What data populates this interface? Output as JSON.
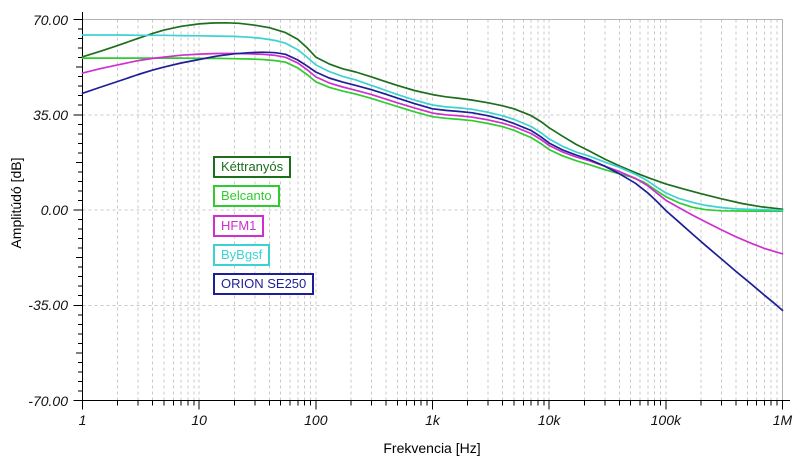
{
  "chart_data": {
    "type": "line",
    "title": "",
    "xlabel": "Frekvencia [Hz]",
    "ylabel": "Amplitúdó [dB]",
    "x_scale": "log",
    "xlim": [
      1,
      1000000
    ],
    "ylim": [
      -70,
      70
    ],
    "y_major_step": 35,
    "y_minor_step": 3.5,
    "grid": {
      "horizontal_dashed_at": [
        35,
        0,
        -35
      ],
      "vertical_dashed": "log minor 2-9 each decade plus decades",
      "top_frame": 70,
      "right_frame": 1000000
    },
    "colors": {
      "grid": "#c9c9c9",
      "frame": "#b2b2b2",
      "axis": "#000000",
      "tick_text": "#111111"
    },
    "x_ticks": [
      {
        "value": 1,
        "label": "1"
      },
      {
        "value": 10,
        "label": "10"
      },
      {
        "value": 100,
        "label": "100"
      },
      {
        "value": 1000,
        "label": "1k"
      },
      {
        "value": 10000,
        "label": "10k"
      },
      {
        "value": 100000,
        "label": "100k"
      },
      {
        "value": 1000000,
        "label": "1M"
      }
    ],
    "y_ticks": [
      {
        "value": 70,
        "label": "70.00"
      },
      {
        "value": 35,
        "label": "35.00"
      },
      {
        "value": 0,
        "label": "0.00"
      },
      {
        "value": -35,
        "label": "-35.00"
      },
      {
        "value": -70,
        "label": "-70.00"
      }
    ],
    "legend": {
      "position": "inside-left",
      "items": [
        "Kéttranyós",
        "Belcanto",
        "HFM1",
        "ByBgsf",
        "ORION SE250"
      ]
    },
    "series": [
      {
        "name": "Kéttranyós",
        "color": "#1d6e1d",
        "points": [
          [
            1,
            56.3
          ],
          [
            1.4,
            58.2
          ],
          [
            2,
            60.4
          ],
          [
            3,
            63.1
          ],
          [
            4,
            64.9
          ],
          [
            5,
            66.1
          ],
          [
            7,
            67.5
          ],
          [
            10,
            68.4
          ],
          [
            13,
            68.7
          ],
          [
            17,
            68.8
          ],
          [
            22,
            68.6
          ],
          [
            30,
            67.9
          ],
          [
            40,
            67
          ],
          [
            55,
            65.2
          ],
          [
            70,
            62.7
          ],
          [
            85,
            59.4
          ],
          [
            100,
            56.2
          ],
          [
            130,
            53.7
          ],
          [
            170,
            51.9
          ],
          [
            220,
            50.7
          ],
          [
            300,
            48.9
          ],
          [
            400,
            47.1
          ],
          [
            500,
            45.8
          ],
          [
            700,
            43.9
          ],
          [
            1000,
            42.4
          ],
          [
            1300,
            41.6
          ],
          [
            1700,
            41
          ],
          [
            2200,
            40.4
          ],
          [
            3000,
            39.4
          ],
          [
            4000,
            38.3
          ],
          [
            5000,
            37.2
          ],
          [
            7000,
            34.7
          ],
          [
            8500,
            32.5
          ],
          [
            10000,
            30.2
          ],
          [
            13000,
            27.1
          ],
          [
            17000,
            24.1
          ],
          [
            22000,
            21.7
          ],
          [
            30000,
            18.7
          ],
          [
            40000,
            16.2
          ],
          [
            55000,
            13.7
          ],
          [
            70000,
            11.9
          ],
          [
            100000,
            9.6
          ],
          [
            140000,
            7.8
          ],
          [
            200000,
            6
          ],
          [
            300000,
            4.1
          ],
          [
            450000,
            2.4
          ],
          [
            650000,
            1.2
          ],
          [
            1000000,
            0.3
          ]
        ]
      },
      {
        "name": "Belcanto",
        "color": "#2fcc2f",
        "points": [
          [
            1,
            55.8
          ],
          [
            2,
            55.8
          ],
          [
            3,
            55.8
          ],
          [
            5,
            55.8
          ],
          [
            7,
            55.8
          ],
          [
            10,
            55.7
          ],
          [
            14,
            55.7
          ],
          [
            20,
            55.6
          ],
          [
            27,
            55.5
          ],
          [
            35,
            55.3
          ],
          [
            45,
            54.9
          ],
          [
            55,
            54.3
          ],
          [
            70,
            52.2
          ],
          [
            85,
            49.6
          ],
          [
            100,
            47.1
          ],
          [
            130,
            45.1
          ],
          [
            170,
            43.7
          ],
          [
            220,
            42.6
          ],
          [
            300,
            41
          ],
          [
            400,
            39.3
          ],
          [
            500,
            38
          ],
          [
            700,
            36.1
          ],
          [
            1000,
            34.3
          ],
          [
            1300,
            33.7
          ],
          [
            1700,
            33.3
          ],
          [
            2200,
            32.8
          ],
          [
            3000,
            31.8
          ],
          [
            4000,
            30.6
          ],
          [
            5000,
            29.3
          ],
          [
            7000,
            26.6
          ],
          [
            8500,
            24.4
          ],
          [
            10000,
            22.2
          ],
          [
            13000,
            19.9
          ],
          [
            17000,
            18.1
          ],
          [
            22000,
            16.7
          ],
          [
            30000,
            14.8
          ],
          [
            40000,
            13.3
          ],
          [
            50000,
            12.2
          ],
          [
            65000,
            10.2
          ],
          [
            80000,
            7.6
          ],
          [
            100000,
            4.9
          ],
          [
            130000,
            2.6
          ],
          [
            170000,
            1
          ],
          [
            220000,
            0.1
          ],
          [
            300000,
            -0.3
          ],
          [
            500000,
            -0.4
          ],
          [
            700000,
            -0.4
          ],
          [
            1000000,
            -0.4
          ]
        ]
      },
      {
        "name": "HFM1",
        "color": "#cf2fcf",
        "points": [
          [
            1,
            50.3
          ],
          [
            1.4,
            51.9
          ],
          [
            2,
            53.3
          ],
          [
            3,
            54.9
          ],
          [
            4,
            55.7
          ],
          [
            5,
            56.2
          ],
          [
            7,
            56.9
          ],
          [
            10,
            57.3
          ],
          [
            14,
            57.5
          ],
          [
            20,
            57.5
          ],
          [
            27,
            57.4
          ],
          [
            35,
            57.2
          ],
          [
            45,
            56.8
          ],
          [
            55,
            56.1
          ],
          [
            70,
            54
          ],
          [
            85,
            51.4
          ],
          [
            100,
            48.9
          ],
          [
            130,
            46.7
          ],
          [
            170,
            45.2
          ],
          [
            220,
            44
          ],
          [
            300,
            42.4
          ],
          [
            400,
            40.7
          ],
          [
            500,
            39.4
          ],
          [
            700,
            37.5
          ],
          [
            1000,
            35.6
          ],
          [
            1300,
            35
          ],
          [
            1700,
            34.6
          ],
          [
            2200,
            34.1
          ],
          [
            3000,
            33.1
          ],
          [
            4000,
            31.9
          ],
          [
            5000,
            30.6
          ],
          [
            7000,
            28.1
          ],
          [
            8500,
            25.9
          ],
          [
            10000,
            23.7
          ],
          [
            13000,
            21.3
          ],
          [
            17000,
            19.5
          ],
          [
            22000,
            18.1
          ],
          [
            30000,
            16.1
          ],
          [
            40000,
            14.1
          ],
          [
            55000,
            11.6
          ],
          [
            70000,
            8.9
          ],
          [
            85000,
            6
          ],
          [
            100000,
            3.6
          ],
          [
            130000,
            0.8
          ],
          [
            170000,
            -1.9
          ],
          [
            220000,
            -4.4
          ],
          [
            300000,
            -7.3
          ],
          [
            400000,
            -9.9
          ],
          [
            550000,
            -12.4
          ],
          [
            700000,
            -14.1
          ],
          [
            850000,
            -15.2
          ],
          [
            1000000,
            -16.1
          ]
        ]
      },
      {
        "name": "ByBgsf",
        "color": "#3dd2d2",
        "points": [
          [
            1,
            64.3
          ],
          [
            2,
            64.3
          ],
          [
            3,
            64.2
          ],
          [
            5,
            64.2
          ],
          [
            7,
            64.1
          ],
          [
            10,
            64
          ],
          [
            14,
            63.9
          ],
          [
            20,
            63.8
          ],
          [
            27,
            63.5
          ],
          [
            35,
            63
          ],
          [
            45,
            62.3
          ],
          [
            55,
            61.3
          ],
          [
            70,
            58.9
          ],
          [
            85,
            56
          ],
          [
            100,
            53.3
          ],
          [
            130,
            50.9
          ],
          [
            170,
            49.1
          ],
          [
            220,
            47.8
          ],
          [
            300,
            45.8
          ],
          [
            400,
            43.9
          ],
          [
            500,
            42.4
          ],
          [
            700,
            40.4
          ],
          [
            1000,
            38.6
          ],
          [
            1300,
            37.9
          ],
          [
            1700,
            37.5
          ],
          [
            2200,
            37
          ],
          [
            3000,
            35.9
          ],
          [
            4000,
            34.6
          ],
          [
            5000,
            33.3
          ],
          [
            7000,
            30.7
          ],
          [
            8500,
            28.4
          ],
          [
            10000,
            26.1
          ],
          [
            13000,
            23.4
          ],
          [
            17000,
            21.3
          ],
          [
            22000,
            19.8
          ],
          [
            30000,
            17.6
          ],
          [
            40000,
            15.7
          ],
          [
            55000,
            13.1
          ],
          [
            70000,
            10.7
          ],
          [
            85000,
            8.2
          ],
          [
            100000,
            6.3
          ],
          [
            130000,
            4.2
          ],
          [
            170000,
            2.8
          ],
          [
            220000,
            1.7
          ],
          [
            300000,
            0.9
          ],
          [
            400000,
            0.4
          ],
          [
            550000,
            0.2
          ],
          [
            700000,
            0.1
          ],
          [
            1000000,
            -0.1
          ]
        ]
      },
      {
        "name": "ORION SE250",
        "color": "#1e1e96",
        "points": [
          [
            1,
            42.9
          ],
          [
            1.4,
            45
          ],
          [
            2,
            47.2
          ],
          [
            3,
            49.8
          ],
          [
            4,
            51.4
          ],
          [
            5,
            52.5
          ],
          [
            7,
            54
          ],
          [
            10,
            55.3
          ],
          [
            14,
            56.5
          ],
          [
            20,
            57.4
          ],
          [
            27,
            57.8
          ],
          [
            35,
            58
          ],
          [
            45,
            57.8
          ],
          [
            55,
            57.2
          ],
          [
            70,
            55.1
          ],
          [
            85,
            52.8
          ],
          [
            100,
            50.7
          ],
          [
            130,
            48.5
          ],
          [
            170,
            47
          ],
          [
            220,
            45.8
          ],
          [
            300,
            44.2
          ],
          [
            400,
            42.5
          ],
          [
            500,
            41.1
          ],
          [
            700,
            39.1
          ],
          [
            1000,
            37.2
          ],
          [
            1300,
            36.6
          ],
          [
            1700,
            36.2
          ],
          [
            2200,
            35.7
          ],
          [
            3000,
            34.6
          ],
          [
            4000,
            33.2
          ],
          [
            5000,
            31.8
          ],
          [
            7000,
            29.2
          ],
          [
            8500,
            26.9
          ],
          [
            10000,
            24.6
          ],
          [
            13000,
            22.1
          ],
          [
            17000,
            20.2
          ],
          [
            22000,
            18.6
          ],
          [
            30000,
            16.1
          ],
          [
            40000,
            13.3
          ],
          [
            55000,
            9.8
          ],
          [
            70000,
            6.3
          ],
          [
            85000,
            2.9
          ],
          [
            100000,
            -0.2
          ],
          [
            130000,
            -4.5
          ],
          [
            170000,
            -8.9
          ],
          [
            220000,
            -13.1
          ],
          [
            300000,
            -18
          ],
          [
            400000,
            -22.6
          ],
          [
            550000,
            -27.5
          ],
          [
            700000,
            -31.3
          ],
          [
            850000,
            -34.3
          ],
          [
            1000000,
            -36.9
          ]
        ]
      }
    ]
  }
}
